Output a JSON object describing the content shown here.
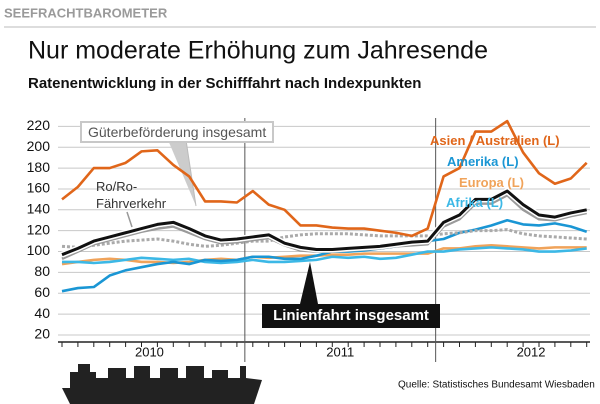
{
  "header": "SEEFRACHTBAROMETER",
  "chart_data": {
    "type": "line",
    "title": "Nur moderate Erhöhung zum Jahresende",
    "subtitle": "Ratenentwicklung in der Schifffahrt nach Indexpunkten",
    "source": "Quelle: Statistisches Bundesamt Wiesbaden",
    "categories": [
      null,
      null,
      null,
      null,
      null,
      "2010",
      null,
      null,
      null,
      null,
      null,
      null,
      null,
      null,
      null,
      null,
      null,
      "2011",
      null,
      null,
      null,
      null,
      null,
      null,
      null,
      null,
      null,
      null,
      null,
      "2012",
      null,
      null,
      null,
      null
    ],
    "ylim": [
      20,
      228
    ],
    "yticks": [
      20,
      40,
      60,
      80,
      100,
      120,
      140,
      160,
      180,
      200,
      220
    ],
    "grid": true,
    "series": [
      {
        "name": "Europa (L)",
        "color": "#f0a35a",
        "values": [
          88,
          90,
          92,
          93,
          92,
          90,
          90,
          89,
          90,
          92,
          93,
          92,
          95,
          94,
          95,
          96,
          96,
          97,
          97,
          98,
          98,
          98,
          98,
          98,
          103,
          103,
          105,
          106,
          105,
          104,
          103,
          104,
          104,
          104
        ]
      },
      {
        "name": "Afrika (L)",
        "color": "#3cb8e6",
        "values": [
          90,
          90,
          89,
          90,
          92,
          94,
          93,
          92,
          93,
          90,
          89,
          90,
          92,
          90,
          90,
          91,
          92,
          95,
          94,
          95,
          93,
          94,
          97,
          100,
          100,
          102,
          103,
          104,
          103,
          102,
          100,
          100,
          101,
          103
        ]
      },
      {
        "name": "Amerika (L)",
        "color": "#1a96d4",
        "values": [
          62,
          65,
          66,
          77,
          82,
          85,
          88,
          90,
          88,
          92,
          91,
          92,
          95,
          95,
          93,
          93,
          96,
          100,
          100,
          101,
          103,
          105,
          108,
          110,
          112,
          118,
          121,
          125,
          130,
          126,
          125,
          127,
          124,
          119
        ]
      },
      {
        "name": "Güterbeförderung insgesamt",
        "color": "#aaaaaa",
        "dashed": true,
        "values": [
          105,
          104,
          106,
          108,
          110,
          111,
          112,
          110,
          107,
          105,
          106,
          108,
          110,
          110,
          114,
          116,
          117,
          117,
          117,
          116,
          115,
          115,
          115,
          115,
          117,
          118,
          120,
          120,
          121,
          117,
          115,
          114,
          113,
          112
        ]
      },
      {
        "name": "Ro/Ro-Fährverkehr",
        "color": "#9a9a9a",
        "values": [
          93,
          100,
          107,
          111,
          115,
          119,
          122,
          124,
          118,
          112,
          108,
          109,
          111,
          113,
          106,
          101,
          100,
          100,
          101,
          102,
          103,
          105,
          106,
          107,
          124,
          131,
          146,
          146,
          154,
          140,
          131,
          130,
          134,
          137
        ]
      },
      {
        "name": "Linienfahrt insgesamt",
        "color": "#111111",
        "values": [
          97,
          103,
          110,
          114,
          118,
          122,
          126,
          128,
          122,
          115,
          111,
          112,
          114,
          116,
          108,
          104,
          102,
          102,
          103,
          104,
          105,
          107,
          109,
          110,
          128,
          135,
          150,
          150,
          158,
          145,
          135,
          133,
          137,
          140
        ]
      },
      {
        "name": "Asien / Australien (L)",
        "color": "#e0661a",
        "values": [
          150,
          162,
          180,
          180,
          185,
          196,
          197,
          183,
          172,
          148,
          148,
          147,
          158,
          145,
          140,
          125,
          125,
          123,
          122,
          122,
          120,
          118,
          115,
          122,
          172,
          180,
          215,
          215,
          225,
          195,
          175,
          165,
          170,
          185
        ]
      }
    ]
  }
}
